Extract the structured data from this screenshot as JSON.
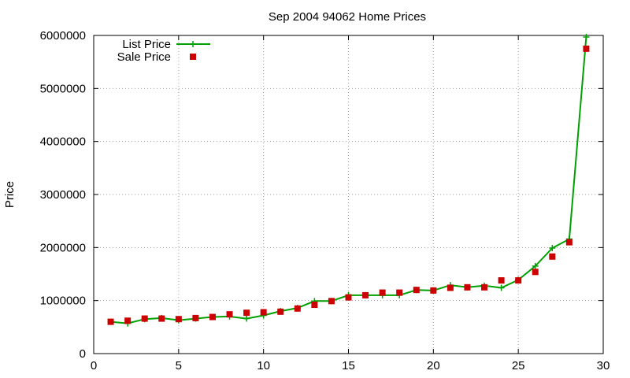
{
  "chart_data": {
    "type": "line",
    "title": "Sep 2004 94062 Home Prices",
    "xlabel": "",
    "ylabel": "Price",
    "xlim": [
      0,
      30
    ],
    "ylim": [
      0,
      6000000
    ],
    "x_ticks": [
      0,
      5,
      10,
      15,
      20,
      25,
      30
    ],
    "y_ticks": [
      0,
      1000000,
      2000000,
      3000000,
      4000000,
      5000000,
      6000000
    ],
    "grid": true,
    "legend_position": "top-left",
    "series": [
      {
        "name": "List Price",
        "style": "line-with-plus-markers",
        "color": "#00a000",
        "x": [
          1,
          2,
          3,
          4,
          5,
          6,
          7,
          8,
          9,
          10,
          11,
          12,
          13,
          14,
          15,
          16,
          17,
          18,
          19,
          20,
          21,
          22,
          23,
          24,
          25,
          26,
          27,
          28,
          29
        ],
        "values": [
          600000,
          570000,
          650000,
          670000,
          630000,
          660000,
          690000,
          700000,
          660000,
          720000,
          800000,
          860000,
          990000,
          990000,
          1100000,
          1100000,
          1100000,
          1100000,
          1200000,
          1190000,
          1290000,
          1250000,
          1280000,
          1240000,
          1390000,
          1650000,
          1990000,
          2160000,
          5970000
        ]
      },
      {
        "name": "Sale Price",
        "style": "square-markers",
        "color": "#cc0000",
        "x": [
          1,
          2,
          3,
          4,
          5,
          6,
          7,
          8,
          9,
          10,
          11,
          12,
          13,
          14,
          15,
          16,
          17,
          18,
          19,
          20,
          21,
          22,
          23,
          24,
          25,
          26,
          27,
          28,
          29
        ],
        "values": [
          600000,
          620000,
          660000,
          660000,
          650000,
          670000,
          690000,
          740000,
          770000,
          780000,
          790000,
          850000,
          920000,
          990000,
          1060000,
          1100000,
          1150000,
          1150000,
          1200000,
          1190000,
          1240000,
          1250000,
          1250000,
          1380000,
          1380000,
          1540000,
          1830000,
          2100000,
          5750000
        ]
      }
    ]
  }
}
